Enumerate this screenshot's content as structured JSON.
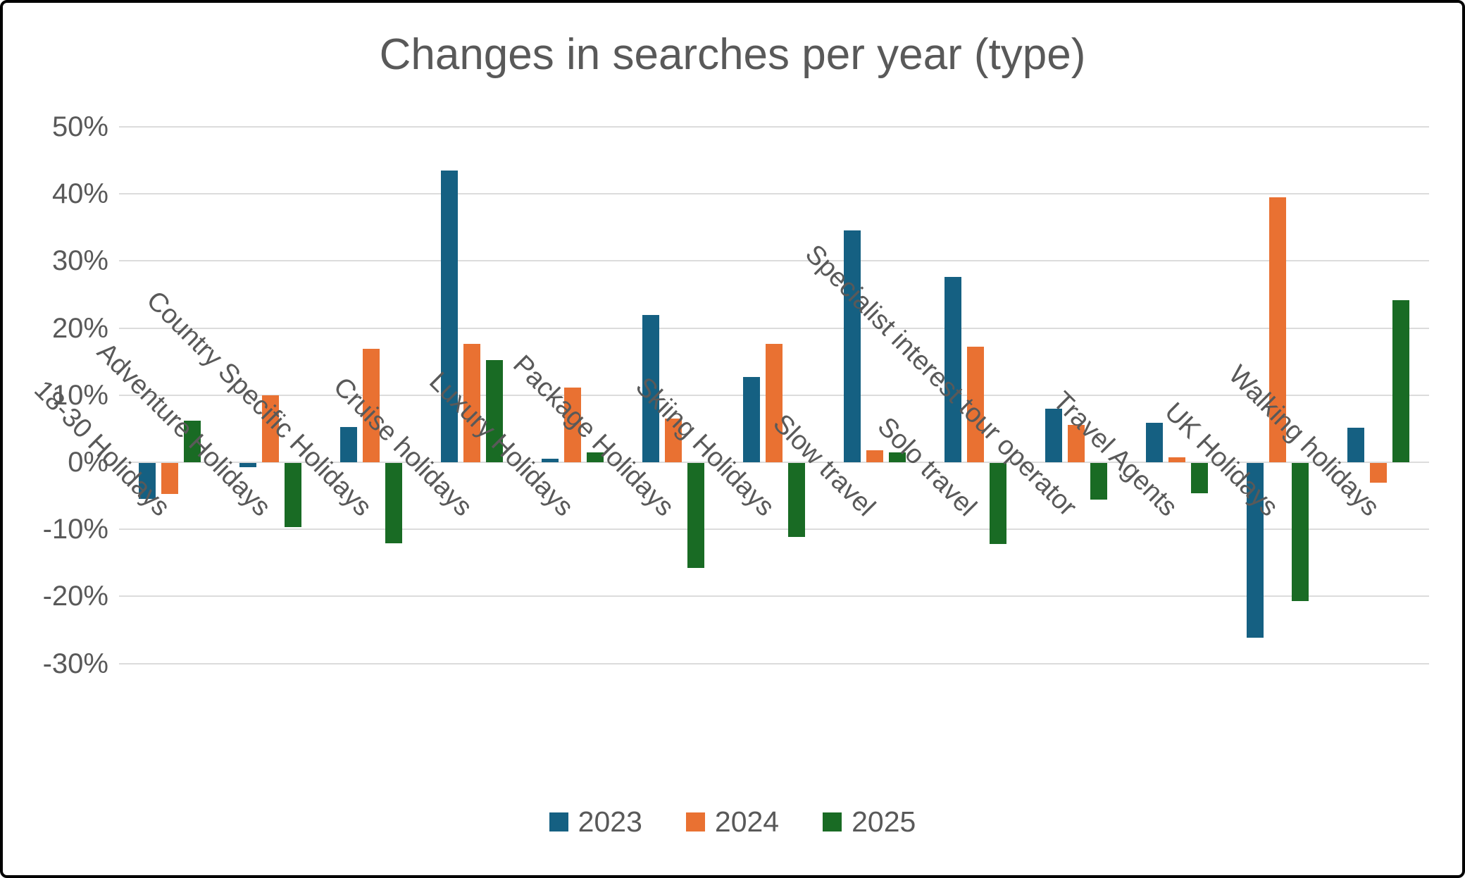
{
  "title": "Changes in searches per year (type)",
  "colors": {
    "axis_text": "#595959",
    "title_text": "#595959",
    "gridline": "#DCDCDC",
    "background": "#FFFFFF",
    "frame_border": "#000000",
    "series_2023": "#156082",
    "series_2024": "#E97132",
    "series_2025": "#196B24"
  },
  "chart_data": {
    "type": "bar",
    "title": "Changes in searches per year (type)",
    "xlabel": "",
    "ylabel": "",
    "categories": [
      "18-30 Holidays",
      "Adventure Holidays",
      "Country Specific Holidays",
      "Cruise holidays",
      "Luxury Holidays",
      "Package Holidays",
      "Skiing Holidays",
      "Slow travel",
      "Solo travel",
      "Specialist interest tour operator",
      "Travel Agents",
      "UK Holidays",
      "Walking holidays"
    ],
    "series": [
      {
        "name": "2023",
        "color": "#156082",
        "values": [
          -5.4,
          -0.6,
          5.3,
          43.5,
          0.5,
          22.0,
          12.7,
          34.6,
          27.6,
          8.0,
          5.9,
          -26.1,
          5.1
        ]
      },
      {
        "name": "2024",
        "color": "#E97132",
        "values": [
          -4.6,
          10.0,
          16.9,
          17.6,
          11.1,
          6.5,
          17.6,
          1.8,
          17.2,
          5.6,
          0.7,
          39.5,
          -2.9
        ]
      },
      {
        "name": "2025",
        "color": "#196B24",
        "values": [
          6.2,
          -9.6,
          -12.0,
          15.2,
          1.5,
          -15.6,
          -11.0,
          1.5,
          -12.1,
          -5.5,
          -4.5,
          -20.6,
          24.2
        ]
      }
    ],
    "y_ticks": [
      50,
      40,
      30,
      20,
      10,
      0,
      -10,
      -20,
      -30
    ],
    "y_tick_suffix": "%",
    "ylim": [
      -30,
      50
    ],
    "grid": true,
    "legend_position": "bottom"
  }
}
